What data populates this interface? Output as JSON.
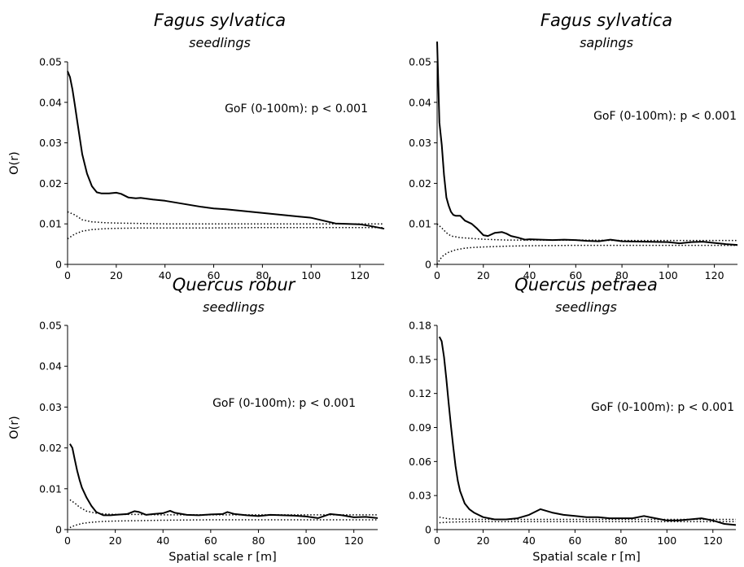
{
  "chart_data": [
    {
      "type": "line",
      "title": "Fagus sylvatica",
      "subtitle": "seedlings",
      "xlabel": "",
      "ylabel": "O(r)",
      "annotation": "GoF (0-100m): p < 0.001",
      "xlim": [
        0,
        130
      ],
      "ylim": [
        0,
        0.05
      ],
      "xticks": [
        0,
        20,
        40,
        60,
        80,
        100,
        120
      ],
      "yticks": [
        0,
        0.01,
        0.02,
        0.03,
        0.04,
        0.05
      ],
      "ytick_labels": [
        "0",
        "0.01",
        "0.02",
        "0.03",
        "0.04",
        "0.05"
      ],
      "series": [
        {
          "style": "solid",
          "x": [
            0,
            1,
            2,
            3,
            4,
            5,
            6,
            8,
            10,
            12,
            14,
            17,
            20,
            22,
            25,
            28,
            30,
            35,
            40,
            45,
            50,
            55,
            60,
            65,
            70,
            75,
            80,
            85,
            90,
            95,
            100,
            105,
            110,
            115,
            120,
            125,
            130
          ],
          "y": [
            0.0477,
            0.0462,
            0.0432,
            0.0393,
            0.0352,
            0.0312,
            0.0272,
            0.0224,
            0.0193,
            0.0178,
            0.0175,
            0.0175,
            0.0177,
            0.0174,
            0.0165,
            0.0163,
            0.0164,
            0.016,
            0.0157,
            0.0152,
            0.0147,
            0.0142,
            0.0138,
            0.0136,
            0.0133,
            0.013,
            0.0127,
            0.0124,
            0.0121,
            0.0118,
            0.0115,
            0.0108,
            0.0101,
            0.01,
            0.0099,
            0.0094,
            0.0088
          ]
        },
        {
          "style": "dotted",
          "x": [
            0,
            3,
            6,
            10,
            15,
            20,
            30,
            40,
            60,
            80,
            100,
            120,
            130
          ],
          "y": [
            0.013,
            0.0122,
            0.011,
            0.0105,
            0.0103,
            0.0102,
            0.0101,
            0.01,
            0.01,
            0.01,
            0.01,
            0.01,
            0.01
          ]
        },
        {
          "style": "dotted",
          "x": [
            0,
            3,
            6,
            10,
            15,
            20,
            30,
            40,
            60,
            80,
            100,
            120,
            130
          ],
          "y": [
            0.0063,
            0.0075,
            0.0082,
            0.0086,
            0.0088,
            0.0089,
            0.009,
            0.009,
            0.009,
            0.0091,
            0.0091,
            0.0091,
            0.0091
          ]
        }
      ]
    },
    {
      "type": "line",
      "title": "Fagus sylvatica",
      "subtitle": "saplings",
      "xlabel": "",
      "ylabel": "",
      "annotation": "GoF (0-100m): p < 0.001",
      "xlim": [
        0,
        130
      ],
      "ylim": [
        0,
        0.05
      ],
      "xticks": [
        0,
        20,
        40,
        60,
        80,
        100,
        120
      ],
      "yticks": [
        0,
        0.01,
        0.02,
        0.03,
        0.04,
        0.05
      ],
      "ytick_labels": [
        "0",
        "0.01",
        "0.02",
        "0.03",
        "0.04",
        "0.05"
      ],
      "series": [
        {
          "style": "solid",
          "x": [
            0,
            1,
            2,
            3,
            4,
            5,
            6,
            7,
            8,
            10,
            12,
            15,
            17,
            20,
            22,
            25,
            28,
            30,
            32,
            35,
            38,
            40,
            45,
            50,
            55,
            60,
            65,
            70,
            75,
            80,
            90,
            100,
            105,
            110,
            115,
            120,
            125,
            130
          ],
          "y": [
            0.055,
            0.035,
            0.0295,
            0.022,
            0.0165,
            0.0145,
            0.013,
            0.0122,
            0.012,
            0.012,
            0.0108,
            0.01,
            0.009,
            0.0072,
            0.007,
            0.0078,
            0.008,
            0.0076,
            0.007,
            0.0066,
            0.0061,
            0.0062,
            0.0061,
            0.006,
            0.0061,
            0.006,
            0.0058,
            0.0057,
            0.0061,
            0.0057,
            0.0056,
            0.0055,
            0.0052,
            0.0055,
            0.0056,
            0.0053,
            0.005,
            0.0048
          ]
        },
        {
          "style": "dotted",
          "x": [
            0,
            2,
            4,
            6,
            10,
            15,
            20,
            30,
            40,
            60,
            80,
            100,
            130
          ],
          "y": [
            0.01,
            0.009,
            0.0078,
            0.007,
            0.0066,
            0.0064,
            0.0062,
            0.006,
            0.006,
            0.006,
            0.0059,
            0.0059,
            0.0059
          ]
        },
        {
          "style": "dotted",
          "x": [
            0,
            1,
            2,
            3,
            5,
            8,
            12,
            16,
            20,
            30,
            40,
            60,
            80,
            100,
            130
          ],
          "y": [
            0.0,
            0.001,
            0.0018,
            0.0023,
            0.003,
            0.0036,
            0.004,
            0.0042,
            0.0043,
            0.0045,
            0.0046,
            0.0047,
            0.0047,
            0.0047,
            0.0047
          ]
        }
      ]
    },
    {
      "type": "line",
      "title": "Quercus robur",
      "subtitle": "seedlings",
      "xlabel": "Spatial scale r [m]",
      "ylabel": "O(r)",
      "annotation": "GoF (0-100m): p < 0.001",
      "xlim": [
        0,
        130
      ],
      "ylim": [
        0,
        0.05
      ],
      "xticks": [
        0,
        20,
        40,
        60,
        80,
        100,
        120
      ],
      "yticks": [
        0,
        0.01,
        0.02,
        0.03,
        0.04,
        0.05
      ],
      "ytick_labels": [
        "0",
        "0.01",
        "0.02",
        "0.03",
        "0.04",
        "0.05"
      ],
      "series": [
        {
          "style": "solid",
          "x": [
            1,
            2,
            3,
            4,
            5,
            6,
            8,
            10,
            12,
            15,
            18,
            20,
            25,
            28,
            30,
            33,
            36,
            40,
            43,
            45,
            50,
            55,
            60,
            65,
            67,
            70,
            75,
            80,
            85,
            90,
            95,
            100,
            105,
            110,
            115,
            120,
            125,
            130
          ],
          "y": [
            0.021,
            0.02,
            0.0172,
            0.0145,
            0.0122,
            0.0103,
            0.0078,
            0.0058,
            0.0043,
            0.0035,
            0.0035,
            0.0036,
            0.0038,
            0.0045,
            0.0043,
            0.0036,
            0.0038,
            0.004,
            0.0046,
            0.0041,
            0.0036,
            0.0035,
            0.0037,
            0.0038,
            0.0043,
            0.0038,
            0.0035,
            0.0033,
            0.0036,
            0.0035,
            0.0034,
            0.0032,
            0.0028,
            0.0038,
            0.0035,
            0.003,
            0.0031,
            0.0028
          ]
        },
        {
          "style": "dotted",
          "x": [
            1,
            3,
            5,
            8,
            12,
            16,
            20,
            30,
            40,
            60,
            80,
            100,
            130
          ],
          "y": [
            0.0073,
            0.0065,
            0.0055,
            0.0045,
            0.004,
            0.0038,
            0.0037,
            0.0037,
            0.0036,
            0.0036,
            0.0036,
            0.0036,
            0.0036
          ]
        },
        {
          "style": "dotted",
          "x": [
            1,
            3,
            6,
            10,
            15,
            20,
            30,
            40,
            60,
            80,
            100,
            130
          ],
          "y": [
            0.0005,
            0.001,
            0.0015,
            0.0018,
            0.002,
            0.0021,
            0.0022,
            0.0023,
            0.0024,
            0.0024,
            0.0024,
            0.0024
          ]
        }
      ]
    },
    {
      "type": "line",
      "title": "Quercus petraea",
      "subtitle": "seedlings",
      "xlabel": "Spatial scale r [m]",
      "ylabel": "",
      "annotation": "GoF (0-100m): p < 0.001",
      "xlim": [
        0,
        130
      ],
      "ylim": [
        0,
        0.18
      ],
      "xticks": [
        0,
        20,
        40,
        60,
        80,
        100,
        120
      ],
      "yticks": [
        0,
        0.03,
        0.06,
        0.09,
        0.12,
        0.15,
        0.18
      ],
      "ytick_labels": [
        "0",
        "0.03",
        "0.06",
        "0.09",
        "0.12",
        "0.15",
        "0.18"
      ],
      "series": [
        {
          "style": "solid",
          "x": [
            1,
            2,
            3,
            4,
            5,
            6,
            7,
            8,
            9,
            10,
            12,
            14,
            16,
            18,
            20,
            25,
            30,
            35,
            40,
            45,
            50,
            55,
            60,
            65,
            70,
            75,
            80,
            85,
            90,
            95,
            100,
            105,
            110,
            115,
            120,
            125,
            130
          ],
          "y": [
            0.17,
            0.166,
            0.152,
            0.133,
            0.112,
            0.092,
            0.073,
            0.056,
            0.043,
            0.034,
            0.023,
            0.018,
            0.015,
            0.013,
            0.011,
            0.009,
            0.009,
            0.01,
            0.013,
            0.018,
            0.015,
            0.013,
            0.012,
            0.011,
            0.011,
            0.01,
            0.01,
            0.01,
            0.012,
            0.01,
            0.008,
            0.008,
            0.009,
            0.01,
            0.008,
            0.005,
            0.004
          ]
        },
        {
          "style": "dotted",
          "x": [
            1,
            5,
            10,
            20,
            40,
            60,
            80,
            100,
            130
          ],
          "y": [
            0.011,
            0.0095,
            0.0092,
            0.009,
            0.009,
            0.009,
            0.009,
            0.009,
            0.009
          ]
        },
        {
          "style": "dotted",
          "x": [
            1,
            5,
            10,
            20,
            40,
            60,
            80,
            100,
            130
          ],
          "y": [
            0.006,
            0.0065,
            0.0068,
            0.007,
            0.007,
            0.007,
            0.007,
            0.007,
            0.007
          ]
        }
      ]
    }
  ]
}
